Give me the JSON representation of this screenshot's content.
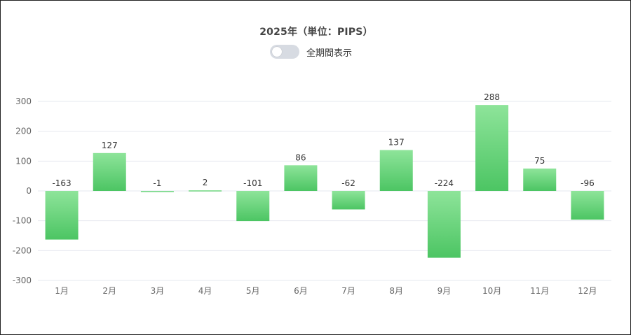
{
  "header": {
    "title": "2025年（単位：PIPS）",
    "toggle_label": "全期間表示",
    "toggle_on": false
  },
  "colors": {
    "bar_top": "#8ee49a",
    "bar_bottom": "#4cc563",
    "grid": "#e6e8ef",
    "axis_text": "#666666",
    "label_text": "#333333"
  },
  "chart_data": {
    "type": "bar",
    "title": "2025年（単位：PIPS）",
    "categories": [
      "1月",
      "2月",
      "3月",
      "4月",
      "5月",
      "6月",
      "7月",
      "8月",
      "9月",
      "10月",
      "11月",
      "12月"
    ],
    "values": [
      -163,
      127,
      -1,
      2,
      -101,
      86,
      -62,
      137,
      -224,
      288,
      75,
      -96
    ],
    "ylim": [
      -300,
      300
    ],
    "yticks": [
      300,
      200,
      100,
      0,
      -100,
      -200,
      -300
    ],
    "grid": true,
    "data_labels": true,
    "legend": "none"
  }
}
